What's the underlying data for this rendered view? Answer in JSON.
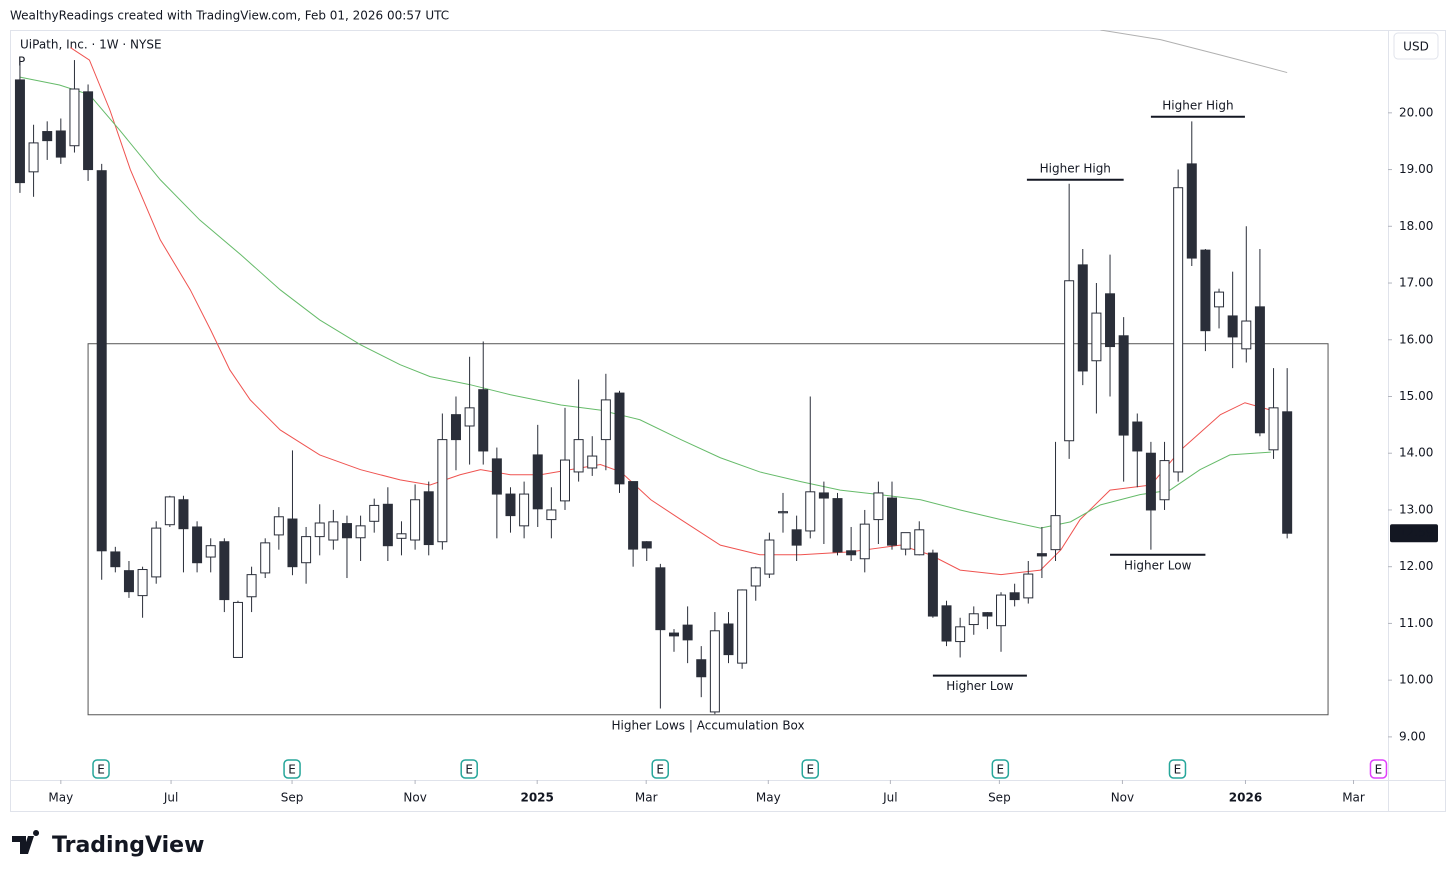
{
  "chart_data": {
    "type": "candlestick",
    "header": "WealthyReadings created with TradingView.com, Feb 01, 2026 00:57 UTC",
    "title": "UiPath, Inc. · 1W · NYSE",
    "marker": "P",
    "currency": "USD",
    "brand": "TradingView",
    "up_color": "#ffffff",
    "down_color": "#2a2e39",
    "open": [
      20.58,
      18.96,
      19.67,
      19.68,
      19.42,
      20.37,
      18.98,
      12.26,
      11.93,
      11.49,
      11.82,
      12.74,
      13.18,
      12.7,
      12.17,
      12.44,
      10.4,
      11.47,
      11.89,
      12.56,
      12.84,
      12.07,
      12.53,
      12.47,
      12.76,
      12.51,
      12.8,
      13.1,
      12.5,
      12.47,
      13.32,
      12.44,
      14.68,
      14.48,
      15.12,
      13.9,
      13.28,
      12.72,
      13.97,
      12.83,
      13.16,
      13.67,
      13.74,
      14.24,
      15.06,
      13.5,
      12.44,
      11.98,
      10.83,
      10.97,
      10.36,
      9.44,
      10.99,
      10.3,
      11.66,
      11.87,
      12.95,
      12.65,
      12.63,
      13.3,
      13.2,
      12.28,
      12.14,
      12.83,
      13.21,
      12.31,
      12.21,
      12.24,
      11.31,
      10.68,
      10.98,
      11.19,
      10.96,
      11.54,
      11.45,
      12.23,
      12.3,
      14.22,
      17.32,
      15.63,
      16.81,
      16.07,
      14.55,
      14.0,
      13.18,
      13.67,
      19.1,
      17.58,
      16.58,
      16.42,
      15.84,
      16.58,
      14.06,
      14.73
    ],
    "high": [
      20.93,
      19.79,
      19.85,
      19.9,
      20.93,
      20.5,
      19.1,
      12.35,
      12.1,
      12.0,
      12.8,
      13.25,
      13.25,
      12.8,
      12.5,
      12.5,
      11.4,
      12.0,
      12.5,
      13.05,
      14.05,
      12.7,
      13.1,
      13.0,
      12.9,
      12.9,
      13.2,
      13.4,
      12.8,
      13.45,
      13.5,
      14.7,
      15.0,
      15.7,
      15.97,
      14.1,
      13.4,
      13.5,
      14.5,
      13.4,
      14.8,
      15.3,
      14.3,
      15.4,
      15.1,
      13.5,
      12.45,
      12.05,
      10.9,
      11.3,
      10.6,
      11.2,
      11.2,
      11.6,
      12.0,
      12.6,
      13.3,
      12.9,
      15.0,
      13.5,
      13.3,
      12.7,
      13.0,
      13.5,
      13.5,
      12.6,
      12.8,
      12.3,
      11.4,
      11.1,
      11.3,
      11.2,
      11.55,
      11.7,
      12.1,
      12.7,
      14.2,
      18.75,
      17.6,
      17.0,
      17.5,
      16.4,
      14.7,
      14.2,
      14.2,
      19.0,
      19.85,
      17.6,
      16.9,
      17.2,
      18.0,
      17.6,
      15.5,
      15.5
    ],
    "low": [
      18.59,
      18.52,
      19.17,
      19.1,
      19.3,
      18.8,
      11.77,
      11.9,
      11.45,
      11.1,
      11.7,
      12.7,
      11.9,
      11.9,
      11.9,
      11.2,
      10.4,
      11.2,
      11.8,
      12.3,
      11.85,
      11.7,
      12.2,
      12.3,
      11.8,
      12.1,
      12.6,
      12.1,
      12.2,
      12.3,
      12.2,
      12.3,
      13.7,
      13.8,
      13.8,
      12.5,
      12.6,
      12.5,
      12.7,
      12.5,
      13.0,
      13.5,
      13.6,
      13.7,
      13.3,
      12.0,
      12.1,
      9.5,
      10.5,
      10.3,
      9.7,
      9.4,
      10.3,
      10.2,
      11.4,
      11.8,
      12.6,
      12.1,
      12.5,
      12.4,
      12.2,
      12.1,
      11.9,
      12.4,
      12.3,
      12.2,
      12.2,
      11.1,
      10.6,
      10.4,
      10.8,
      10.9,
      10.5,
      11.3,
      11.35,
      11.8,
      12.1,
      13.9,
      15.2,
      14.7,
      15.0,
      13.5,
      13.4,
      12.3,
      13.0,
      13.5,
      17.3,
      15.8,
      16.2,
      15.5,
      15.6,
      14.3,
      13.9,
      12.5
    ],
    "close": [
      18.77,
      19.47,
      19.51,
      19.22,
      20.42,
      19.0,
      12.28,
      12.0,
      11.56,
      11.95,
      12.68,
      13.23,
      12.67,
      12.07,
      12.37,
      11.42,
      11.37,
      11.86,
      12.42,
      12.88,
      12.0,
      12.53,
      12.77,
      12.79,
      12.51,
      12.72,
      13.08,
      12.37,
      12.58,
      13.18,
      12.39,
      14.24,
      14.24,
      14.8,
      14.04,
      13.28,
      12.9,
      13.28,
      13.02,
      13.0,
      13.88,
      14.24,
      13.95,
      14.94,
      13.46,
      12.31,
      12.33,
      10.89,
      10.78,
      10.71,
      10.06,
      10.87,
      10.45,
      11.59,
      11.98,
      12.47,
      12.97,
      12.38,
      13.32,
      13.21,
      12.26,
      12.21,
      12.75,
      13.3,
      12.38,
      12.6,
      12.65,
      11.13,
      10.69,
      10.94,
      11.17,
      11.13,
      11.5,
      11.42,
      11.87,
      12.19,
      12.9,
      17.04,
      15.45,
      16.47,
      15.88,
      14.32,
      14.04,
      13.0,
      13.87,
      18.68,
      17.44,
      16.16,
      16.84,
      16.05,
      16.33,
      14.36,
      14.8,
      12.59
    ],
    "last_price": 12.59,
    "ylim": [
      8.24,
      21.46
    ],
    "yticks": [
      {
        "value": 9,
        "label": "9.00"
      },
      {
        "value": 10,
        "label": "10.00"
      },
      {
        "value": 11,
        "label": "11.00"
      },
      {
        "value": 12,
        "label": "12.00"
      },
      {
        "value": 13,
        "label": "13.00"
      },
      {
        "value": 14,
        "label": "14.00"
      },
      {
        "value": 15,
        "label": "15.00"
      },
      {
        "value": 16,
        "label": "16.00"
      },
      {
        "value": 17,
        "label": "17.00"
      },
      {
        "value": 18,
        "label": "18.00"
      },
      {
        "value": 19,
        "label": "19.00"
      },
      {
        "value": 20,
        "label": "20.00"
      }
    ],
    "xlim": [
      -0.73,
      100.4
    ],
    "xticks": [
      {
        "value": 3.0,
        "label": "May"
      },
      {
        "value": 11.09,
        "label": "Jul"
      },
      {
        "value": 19.97,
        "label": "Sep"
      },
      {
        "value": 29.0,
        "label": "Nov"
      },
      {
        "value": 37.96,
        "label": "2025"
      },
      {
        "value": 45.96,
        "label": "Mar"
      },
      {
        "value": 54.92,
        "label": "May"
      },
      {
        "value": 63.88,
        "label": "Jul"
      },
      {
        "value": 71.88,
        "label": "Sep"
      },
      {
        "value": 80.91,
        "label": "Nov"
      },
      {
        "value": 89.94,
        "label": "2026"
      },
      {
        "value": 97.87,
        "label": "Mar"
      }
    ],
    "lines": [
      {
        "color": "#ef5350",
        "x": [
          3.7,
          5.1,
          6.6,
          8.1,
          10.3,
          12.5,
          14.0,
          15.4,
          16.9,
          19.1,
          22.0,
          25.0,
          27.9,
          30.1,
          32.3,
          33.8,
          36.0,
          38.2,
          40.4,
          42.6,
          44.1,
          46.3,
          48.5,
          51.4,
          54.3,
          57.3,
          60.9,
          64.6,
          66.8,
          69.0,
          72.0,
          74.9,
          76.4,
          77.8,
          80.0,
          83.0,
          85.2,
          88.1,
          89.9,
          91.8
        ],
        "values": [
          21.15,
          20.93,
          20.05,
          19.0,
          17.76,
          16.88,
          16.17,
          15.47,
          14.94,
          14.41,
          13.97,
          13.71,
          13.53,
          13.44,
          13.62,
          13.71,
          13.62,
          13.62,
          13.71,
          13.8,
          13.67,
          13.18,
          12.83,
          12.38,
          12.21,
          12.21,
          12.26,
          12.38,
          12.21,
          11.94,
          11.86,
          11.94,
          12.3,
          12.83,
          13.35,
          13.44,
          14.06,
          14.68,
          14.89,
          14.76
        ]
      },
      {
        "color": "#66bb6a",
        "x": [
          0,
          2.9,
          5.1,
          7.3,
          10.3,
          13.2,
          16.2,
          19.1,
          22.0,
          25.0,
          27.9,
          30.1,
          33.0,
          36.0,
          39.7,
          42.6,
          45.5,
          48.5,
          51.4,
          54.3,
          57.3,
          60.2,
          63.1,
          66.1,
          69.0,
          72.0,
          74.9,
          77.1,
          79.3,
          82.2,
          84.4,
          86.6,
          88.8,
          91.8
        ],
        "values": [
          20.63,
          20.49,
          20.32,
          19.7,
          18.82,
          18.11,
          17.5,
          16.88,
          16.35,
          15.91,
          15.56,
          15.35,
          15.21,
          15.03,
          14.85,
          14.76,
          14.59,
          14.24,
          13.92,
          13.67,
          13.5,
          13.35,
          13.27,
          13.18,
          13.0,
          12.83,
          12.68,
          12.79,
          13.09,
          13.27,
          13.35,
          13.71,
          13.97,
          14.02
        ]
      },
      {
        "color": "#b0b0b0",
        "x": [
          79.3,
          83.7,
          88.1,
          93.0
        ],
        "values": [
          21.46,
          21.29,
          21.02,
          20.71
        ]
      }
    ],
    "box": {
      "label": "Higher Lows | Accumulation Box",
      "x": [
        5.0,
        96.0
      ],
      "y": [
        9.39,
        15.93
      ]
    },
    "annotations": [
      {
        "text": "Higher High",
        "y": 18.82,
        "x": [
          73.9,
          81.0
        ],
        "position": "above"
      },
      {
        "text": "Higher High",
        "y": 19.93,
        "x": [
          83.0,
          89.9
        ],
        "position": "above"
      },
      {
        "text": "Higher Low",
        "y": 10.08,
        "x": [
          67.0,
          73.9
        ],
        "position": "below"
      },
      {
        "text": "Higher Low",
        "y": 12.21,
        "x": [
          80.0,
          87.0
        ],
        "position": "below"
      }
    ],
    "earnings": {
      "label": "E",
      "x": [
        5.95,
        19.97,
        32.97,
        46.99,
        58.0,
        71.95,
        84.95
      ],
      "upcoming": 99.7
    }
  }
}
